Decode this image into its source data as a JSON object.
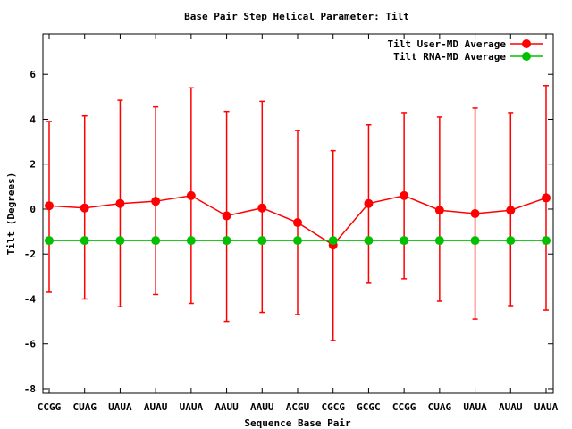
{
  "chart_data": {
    "type": "line",
    "title": "Base Pair Step Helical Parameter: Tilt",
    "xlabel": "Sequence Base Pair",
    "ylabel": "Tilt (Degrees)",
    "ylim": [
      -8.2,
      7.8
    ],
    "yticks": [
      -8,
      -6,
      -4,
      -2,
      0,
      2,
      4,
      6
    ],
    "grid": false,
    "legend_position": "top-right",
    "categories": [
      "CCGG",
      "CUAG",
      "UAUA",
      "AUAU",
      "UAUA",
      "AAUU",
      "AAUU",
      "ACGU",
      "CGCG",
      "GCGC",
      "CCGG",
      "CUAG",
      "UAUA",
      "AUAU",
      "UAUA"
    ],
    "series": [
      {
        "name": "Tilt User-MD Average",
        "color": "#ff0000",
        "values": [
          0.15,
          0.05,
          0.25,
          0.35,
          0.6,
          -0.3,
          0.05,
          -0.6,
          -1.6,
          0.25,
          0.6,
          -0.05,
          -0.2,
          -0.05,
          0.5
        ],
        "err_low": [
          -3.7,
          -4.0,
          -4.35,
          -3.8,
          -4.2,
          -5.0,
          -4.6,
          -4.7,
          -5.85,
          -3.3,
          -3.1,
          -4.1,
          -4.9,
          -4.3,
          -4.5
        ],
        "err_high": [
          3.9,
          4.15,
          4.85,
          4.55,
          5.4,
          4.35,
          4.8,
          3.5,
          2.6,
          3.75,
          4.3,
          4.1,
          4.5,
          4.3,
          5.5
        ]
      },
      {
        "name": "Tilt RNA-MD Average",
        "color": "#00c000",
        "values": [
          -1.4,
          -1.4,
          -1.4,
          -1.4,
          -1.4,
          -1.4,
          -1.4,
          -1.4,
          -1.4,
          -1.4,
          -1.4,
          -1.4,
          -1.4,
          -1.4,
          -1.4
        ]
      }
    ]
  }
}
